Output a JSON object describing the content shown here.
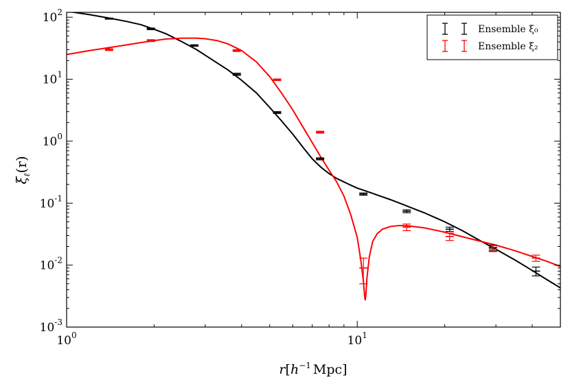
{
  "chart_data": {
    "type": "line",
    "xscale": "log",
    "yscale": "log",
    "xlim": [
      1,
      50
    ],
    "ylim": [
      0.001,
      120
    ],
    "xlabel": "r[h⁻¹ Mpc]",
    "ylabel": "ξℓ(r)",
    "x_ticks": [
      {
        "value": 1,
        "mantissa": "10",
        "exp": "0"
      },
      {
        "value": 10,
        "mantissa": "10",
        "exp": "1"
      }
    ],
    "y_ticks": [
      {
        "value": 0.001,
        "mantissa": "10",
        "exp": "-3"
      },
      {
        "value": 0.01,
        "mantissa": "10",
        "exp": "-2"
      },
      {
        "value": 0.1,
        "mantissa": "10",
        "exp": "-1"
      },
      {
        "value": 1,
        "mantissa": "10",
        "exp": "0"
      },
      {
        "value": 10,
        "mantissa": "10",
        "exp": "1"
      },
      {
        "value": 100,
        "mantissa": "10",
        "exp": "2"
      }
    ],
    "legend": {
      "position": "top-right",
      "entries": [
        {
          "label": "Ensemble ξ₀",
          "color": "#000000"
        },
        {
          "label": "Ensemble ξ₂",
          "color": "#ff0000"
        }
      ]
    },
    "series": [
      {
        "name": "Ensemble ξ₀",
        "color": "#000000",
        "curve_x": [
          1.0,
          1.2,
          1.4,
          1.6,
          1.8,
          2.0,
          2.2,
          2.5,
          2.8,
          3.2,
          3.6,
          4.0,
          4.5,
          5.0,
          5.5,
          6.0,
          6.5,
          7.0,
          7.5,
          8.0,
          8.5,
          9.0,
          9.5,
          10.0,
          11.0,
          12.0,
          13.0,
          14.0,
          15.0,
          17.0,
          20.0,
          23.0,
          26.0,
          30.0,
          35.0,
          40.0,
          45.0,
          50.0
        ],
        "curve_y": [
          125,
          110,
          97,
          86,
          76,
          64,
          54,
          40,
          30,
          20,
          14,
          9.6,
          6,
          3.5,
          2.1,
          1.3,
          0.8,
          0.52,
          0.38,
          0.3,
          0.25,
          0.22,
          0.195,
          0.175,
          0.15,
          0.13,
          0.114,
          0.1,
          0.088,
          0.07,
          0.05,
          0.036,
          0.026,
          0.018,
          0.012,
          0.0082,
          0.0058,
          0.0043
        ],
        "points": [
          {
            "x": 1.4,
            "y": 95,
            "err": 2
          },
          {
            "x": 1.95,
            "y": 65,
            "err": 2
          },
          {
            "x": 2.75,
            "y": 35,
            "err": 1
          },
          {
            "x": 3.85,
            "y": 12,
            "err": 0.5
          },
          {
            "x": 5.3,
            "y": 2.9,
            "err": 0.1
          },
          {
            "x": 7.45,
            "y": 0.52,
            "err": 0.02
          },
          {
            "x": 10.5,
            "y": 0.14,
            "err": 0.006
          },
          {
            "x": 14.8,
            "y": 0.074,
            "err": 0.004
          },
          {
            "x": 20.8,
            "y": 0.038,
            "err": 0.003
          },
          {
            "x": 29.3,
            "y": 0.019,
            "err": 0.002
          },
          {
            "x": 41.2,
            "y": 0.008,
            "err": 0.0013
          }
        ]
      },
      {
        "name": "Ensemble ξ₂",
        "color": "#ff0000",
        "curve_x": [
          1.0,
          1.2,
          1.5,
          1.8,
          2.0,
          2.2,
          2.5,
          2.8,
          3.0,
          3.3,
          3.6,
          4.0,
          4.5,
          5.0,
          5.5,
          6.0,
          6.5,
          7.0,
          7.5,
          8.0,
          8.5,
          9.0,
          9.5,
          10.0,
          10.3,
          10.5,
          10.6,
          10.65,
          10.7,
          10.8,
          11.0,
          11.3,
          11.7,
          12.2,
          13.0,
          14.0,
          15.0,
          17.0,
          20.0,
          25.0,
          30.0,
          35.0,
          40.0,
          45.0,
          50.0
        ],
        "curve_y": [
          25,
          29,
          34,
          39,
          42,
          44.5,
          46,
          46,
          45,
          42,
          37,
          29,
          19,
          11,
          5.9,
          3.2,
          1.7,
          0.95,
          0.55,
          0.34,
          0.22,
          0.13,
          0.065,
          0.028,
          0.0115,
          0.0055,
          0.0032,
          0.0027,
          0.0032,
          0.0062,
          0.0135,
          0.024,
          0.032,
          0.038,
          0.042,
          0.0435,
          0.043,
          0.04,
          0.034,
          0.026,
          0.021,
          0.017,
          0.0138,
          0.0115,
          0.0095
        ],
        "points": [
          {
            "x": 1.4,
            "y": 30,
            "err": 1
          },
          {
            "x": 1.95,
            "y": 42,
            "err": 1.5
          },
          {
            "x": 3.85,
            "y": 29,
            "err": 1
          },
          {
            "x": 5.3,
            "y": 9.8,
            "err": 0.3
          },
          {
            "x": 7.45,
            "y": 1.4,
            "err": 0.05
          },
          {
            "x": 10.5,
            "y": 0.009,
            "err": 0.004
          },
          {
            "x": 14.8,
            "y": 0.041,
            "err": 0.005
          },
          {
            "x": 20.8,
            "y": 0.029,
            "err": 0.004
          },
          {
            "x": 29.3,
            "y": 0.018,
            "err": 0.0015
          },
          {
            "x": 41.2,
            "y": 0.013,
            "err": 0.0015
          }
        ]
      }
    ]
  }
}
